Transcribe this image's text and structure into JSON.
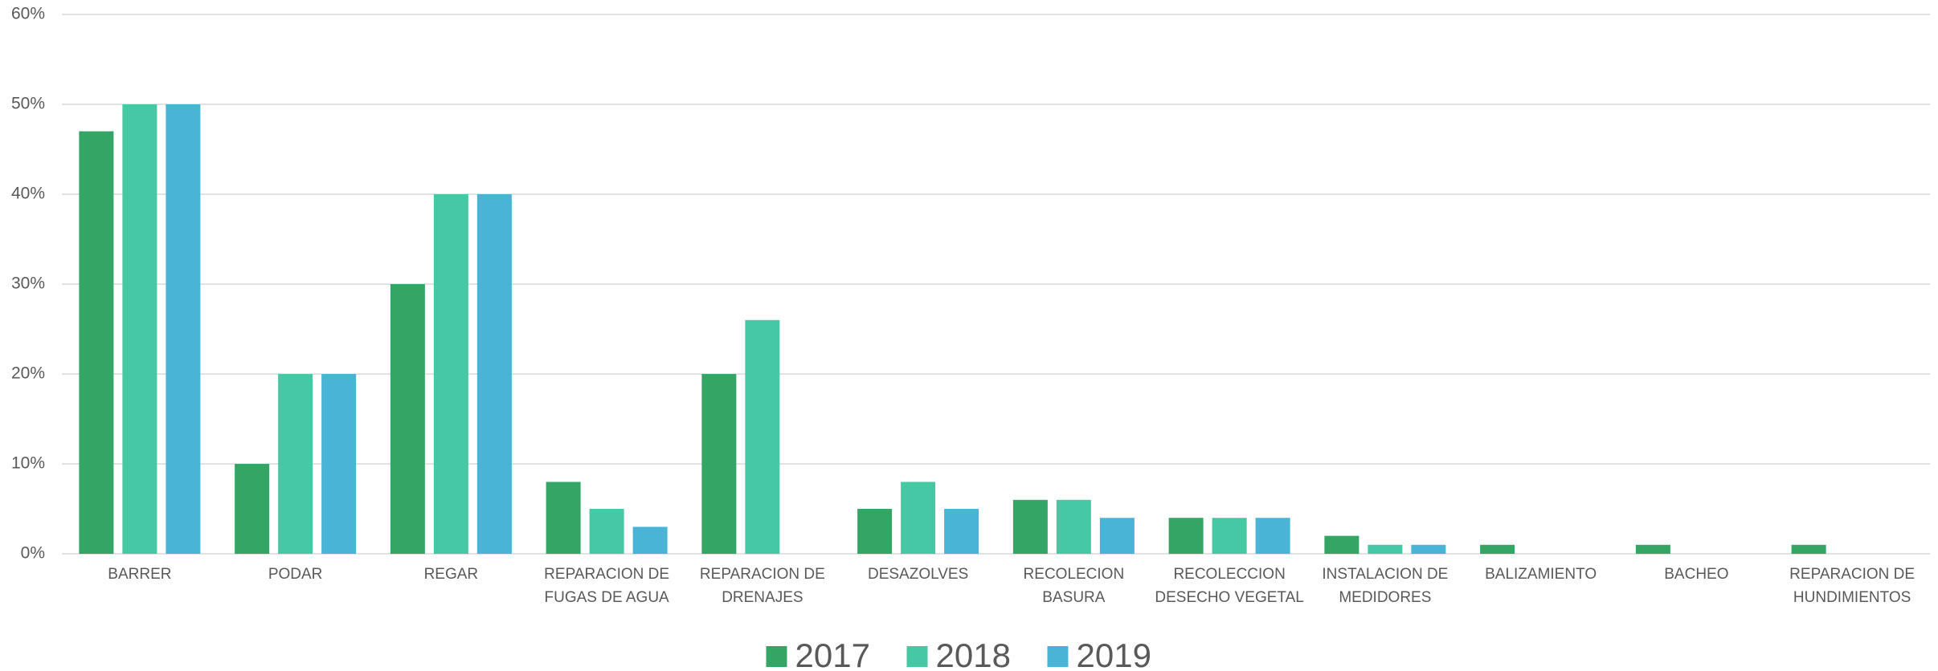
{
  "chart_data": {
    "type": "bar",
    "categories": [
      "BARRER",
      "PODAR",
      "REGAR",
      "REPARACION DE FUGAS DE AGUA",
      "REPARACION DE DRENAJES",
      "DESAZOLVES",
      "RECOLECION BASURA",
      "RECOLECCION DESECHO VEGETAL",
      "INSTALACION DE MEDIDORES",
      "BALIZAMIENTO",
      "BACHEO",
      "REPARACION DE HUNDIMIENTOS"
    ],
    "series": [
      {
        "name": "2017",
        "color": "#35a566",
        "values": [
          47,
          10,
          30,
          8,
          20,
          5,
          6,
          4,
          2,
          1,
          1,
          1
        ]
      },
      {
        "name": "2018",
        "color": "#45c8a3",
        "values": [
          50,
          20,
          40,
          5,
          26,
          8,
          6,
          4,
          1,
          null,
          null,
          null
        ]
      },
      {
        "name": "2019",
        "color": "#4ab4d6",
        "values": [
          50,
          20,
          40,
          3,
          null,
          5,
          4,
          4,
          1,
          null,
          null,
          null
        ]
      }
    ],
    "ylim": [
      0,
      60
    ],
    "yticks": [
      {
        "value": 0,
        "label": "0%"
      },
      {
        "value": 10,
        "label": "10%"
      },
      {
        "value": 20,
        "label": "20%"
      },
      {
        "value": 30,
        "label": "30%"
      },
      {
        "value": 40,
        "label": "40%"
      },
      {
        "value": 50,
        "label": "50%"
      },
      {
        "value": 60,
        "label": "60%"
      }
    ],
    "grid": true,
    "legend": "bottom"
  }
}
